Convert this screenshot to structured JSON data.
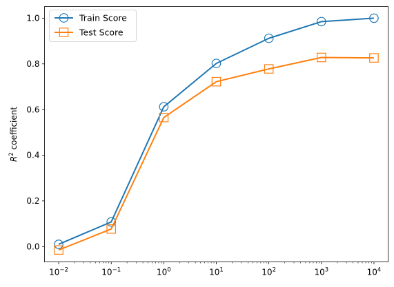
{
  "chart_data": {
    "type": "line",
    "x_scale": "log",
    "x": [
      0.01,
      0.1,
      1,
      10,
      100,
      1000,
      10000
    ],
    "x_tick_labels": [
      {
        "base": "10",
        "exp": "−2"
      },
      {
        "base": "10",
        "exp": "−1"
      },
      {
        "base": "10",
        "exp": "0"
      },
      {
        "base": "10",
        "exp": "1"
      },
      {
        "base": "10",
        "exp": "2"
      },
      {
        "base": "10",
        "exp": "3"
      },
      {
        "base": "10",
        "exp": "4"
      }
    ],
    "y_ticks": [
      "0.0",
      "0.2",
      "0.4",
      "0.6",
      "0.8",
      "1.0"
    ],
    "ylabel": {
      "base": "R",
      "exp": "2",
      "suffix": " coefficient"
    },
    "ylim": [
      -0.067,
      1.051
    ],
    "grid": false,
    "legend_position": "top-left",
    "series": [
      {
        "name": "Train Score",
        "marker": "circle",
        "color": "#1f77b4",
        "values": [
          0.01,
          0.108,
          0.612,
          0.802,
          0.912,
          0.985,
          1.0
        ]
      },
      {
        "name": "Test Score",
        "marker": "square",
        "color": "#ff7f0e",
        "values": [
          -0.015,
          0.077,
          0.565,
          0.722,
          0.778,
          0.828,
          0.826
        ]
      }
    ]
  }
}
